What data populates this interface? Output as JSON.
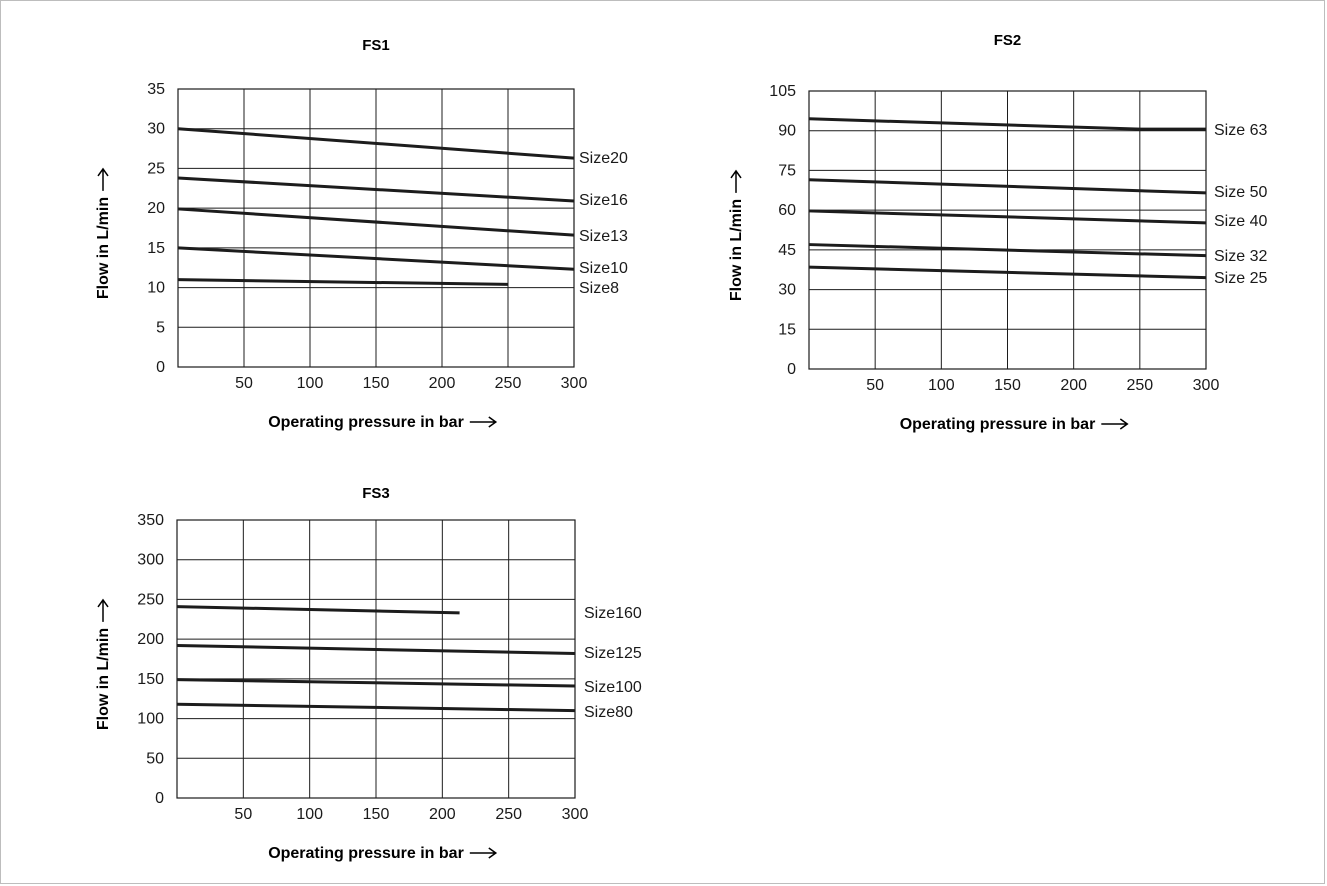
{
  "colors": {
    "line": "#1c1c1c",
    "grid": "#1c1c1c",
    "background": "#ffffff"
  },
  "chart_data": [
    {
      "type": "line",
      "title": "FS1",
      "xlabel": "Operating pressure in bar",
      "ylabel": "Flow in L/min",
      "xlim": [
        0,
        300
      ],
      "ylim": [
        0,
        35
      ],
      "xticks": [
        "50",
        "100",
        "150",
        "200",
        "250",
        "300"
      ],
      "xtick_values": [
        50,
        100,
        150,
        200,
        250,
        300
      ],
      "yticks": [
        "0",
        "5",
        "10",
        "15",
        "20",
        "25",
        "30",
        "35"
      ],
      "ytick_values": [
        0,
        5,
        10,
        15,
        20,
        25,
        30,
        35
      ],
      "grid": true,
      "series": [
        {
          "name": "Size20",
          "x": [
            0,
            300
          ],
          "y": [
            30,
            26.3
          ]
        },
        {
          "name": "Size16",
          "x": [
            0,
            300
          ],
          "y": [
            23.8,
            20.9
          ]
        },
        {
          "name": "Size13",
          "x": [
            0,
            300
          ],
          "y": [
            19.9,
            16.6
          ]
        },
        {
          "name": "Size10",
          "x": [
            0,
            300
          ],
          "y": [
            15,
            12.3
          ]
        },
        {
          "name": "Size8",
          "x": [
            0,
            250
          ],
          "y": [
            11,
            10.4
          ]
        }
      ]
    },
    {
      "type": "line",
      "title": "FS2",
      "xlabel": "Operating pressure in bar",
      "ylabel": "Flow in L/min",
      "xlim": [
        0,
        300
      ],
      "ylim": [
        0,
        105
      ],
      "xticks": [
        "50",
        "100",
        "150",
        "200",
        "250",
        "300"
      ],
      "xtick_values": [
        50,
        100,
        150,
        200,
        250,
        300
      ],
      "yticks": [
        "0",
        "15",
        "30",
        "45",
        "60",
        "75",
        "90",
        "105"
      ],
      "ytick_values": [
        0,
        15,
        30,
        45,
        60,
        75,
        90,
        105
      ],
      "grid": true,
      "series": [
        {
          "name": "Size 63",
          "x": [
            0,
            250,
            300
          ],
          "y": [
            94.5,
            90.6,
            90.6
          ]
        },
        {
          "name": "Size 50",
          "x": [
            0,
            300
          ],
          "y": [
            71.5,
            66.5
          ]
        },
        {
          "name": "Size 40",
          "x": [
            0,
            300
          ],
          "y": [
            59.7,
            55.2
          ]
        },
        {
          "name": "Size 32",
          "x": [
            0,
            300
          ],
          "y": [
            47,
            42.8
          ]
        },
        {
          "name": "Size 25",
          "x": [
            0,
            300
          ],
          "y": [
            38.5,
            34.5
          ]
        }
      ]
    },
    {
      "type": "line",
      "title": "FS3",
      "xlabel": "Operating pressure in bar",
      "ylabel": "Flow in L/min",
      "xlim": [
        0,
        300
      ],
      "ylim": [
        0,
        350
      ],
      "xticks": [
        "50",
        "100",
        "150",
        "200",
        "250",
        "300"
      ],
      "xtick_values": [
        50,
        100,
        150,
        200,
        250,
        300
      ],
      "yticks": [
        "0",
        "50",
        "100",
        "150",
        "200",
        "250",
        "300",
        "350"
      ],
      "ytick_values": [
        0,
        50,
        100,
        150,
        200,
        250,
        300,
        350
      ],
      "grid": true,
      "series": [
        {
          "name": "Size160",
          "x": [
            0,
            213
          ],
          "y": [
            241,
            233
          ]
        },
        {
          "name": "Size125",
          "x": [
            0,
            300
          ],
          "y": [
            192,
            182
          ]
        },
        {
          "name": "Size100",
          "x": [
            0,
            300
          ],
          "y": [
            149,
            141
          ]
        },
        {
          "name": "Size80",
          "x": [
            0,
            300
          ],
          "y": [
            118,
            110
          ]
        }
      ]
    }
  ]
}
